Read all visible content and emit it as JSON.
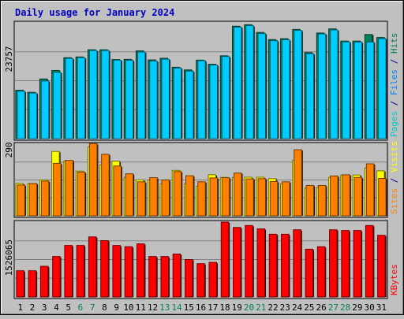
{
  "chart_data": {
    "type": "bar",
    "title": "Daily usage for January 2024",
    "categories": [
      "1",
      "2",
      "3",
      "4",
      "5",
      "6",
      "7",
      "8",
      "9",
      "10",
      "11",
      "12",
      "13",
      "14",
      "15",
      "16",
      "17",
      "18",
      "19",
      "20",
      "21",
      "22",
      "23",
      "24",
      "25",
      "26",
      "27",
      "28",
      "29",
      "30",
      "31"
    ],
    "weekend_days": [
      "6",
      "7",
      "13",
      "14",
      "20",
      "21",
      "27",
      "28"
    ],
    "panels": [
      {
        "id": "top",
        "tick_label": "23757",
        "tick_value": 23757,
        "ylim": [
          0,
          30750
        ],
        "side_legend": [
          {
            "text": "Pages",
            "color": "#00c8c8"
          },
          {
            "text": " / ",
            "color": "#00008b"
          },
          {
            "text": "Files",
            "color": "#0080ff"
          },
          {
            "text": " / ",
            "color": "#00008b"
          },
          {
            "text": "Hits",
            "color": "#00805c"
          }
        ],
        "series": [
          {
            "name": "Hits",
            "color": "#00805c",
            "values": [
              12850,
              12300,
              15850,
              18100,
              21500,
              21700,
              23600,
              23600,
              21000,
              21050,
              23300,
              20900,
              21350,
              18950,
              18250,
              20850,
              19750,
              22000,
              29850,
              30250,
              28200,
              26300,
              26550,
              29000,
              22850,
              28050,
              29150,
              25900,
              25900,
              27650,
              26850
            ]
          },
          {
            "name": "Files",
            "color": "#00ccff",
            "values": [
              12600,
              12100,
              15300,
              17600,
              21300,
              21500,
              23400,
              23400,
              20850,
              20800,
              23000,
              20600,
              21100,
              18750,
              17900,
              20700,
              19550,
              21800,
              29600,
              30000,
              27900,
              26000,
              26250,
              28750,
              22550,
              27800,
              28850,
              25700,
              25650,
              25650,
              26550
            ]
          }
        ]
      },
      {
        "id": "middle",
        "tick_label": "290",
        "tick_value": 290,
        "ylim": [
          0,
          295
        ],
        "side_legend": [
          {
            "text": "Sites",
            "color": "#ff8000"
          },
          {
            "text": " / ",
            "color": "#00008b"
          },
          {
            "text": "Visits",
            "color": "#ffff00"
          }
        ],
        "series": [
          {
            "name": "Visits",
            "color": "#ffff00",
            "values": [
              133,
              133,
              148,
              265,
              225,
              184,
              283,
              210,
              225,
              158,
              148,
              148,
              132,
              187,
              132,
              122,
              169,
              158,
              158,
              159,
              159,
              153,
              132,
              229,
              114,
              117,
              158,
              168,
              168,
              197,
              185
            ]
          },
          {
            "name": "Sites",
            "color": "#ff8000",
            "values": [
              127,
              133,
              143,
              216,
              228,
              180,
              297,
              253,
              205,
              173,
              140,
              157,
              148,
              182,
              165,
              140,
              156,
              157,
              176,
              152,
              153,
              141,
              140,
              272,
              125,
              125,
              164,
              169,
              158,
              214,
              154
            ]
          }
        ]
      },
      {
        "id": "bottom",
        "tick_label": "1526065",
        "tick_value": 1526065,
        "ylim": [
          0,
          2100000
        ],
        "side_legend": [
          {
            "text": "KBytes",
            "color": "#ff0000"
          }
        ],
        "series": [
          {
            "name": "KBytes",
            "color": "#ff0000",
            "values": [
              735000,
              735000,
              860000,
              1135000,
              1445000,
              1445000,
              1685000,
              1580000,
              1445000,
              1410000,
              1490000,
              1135000,
              1135000,
              1205000,
              1050000,
              935000,
              970000,
              2100000,
              1950000,
              2005000,
              1910000,
              1760000,
              1760000,
              1885000,
              1340000,
              1410000,
              1885000,
              1865000,
              1865000,
              2005000,
              1730000
            ]
          }
        ]
      }
    ]
  }
}
